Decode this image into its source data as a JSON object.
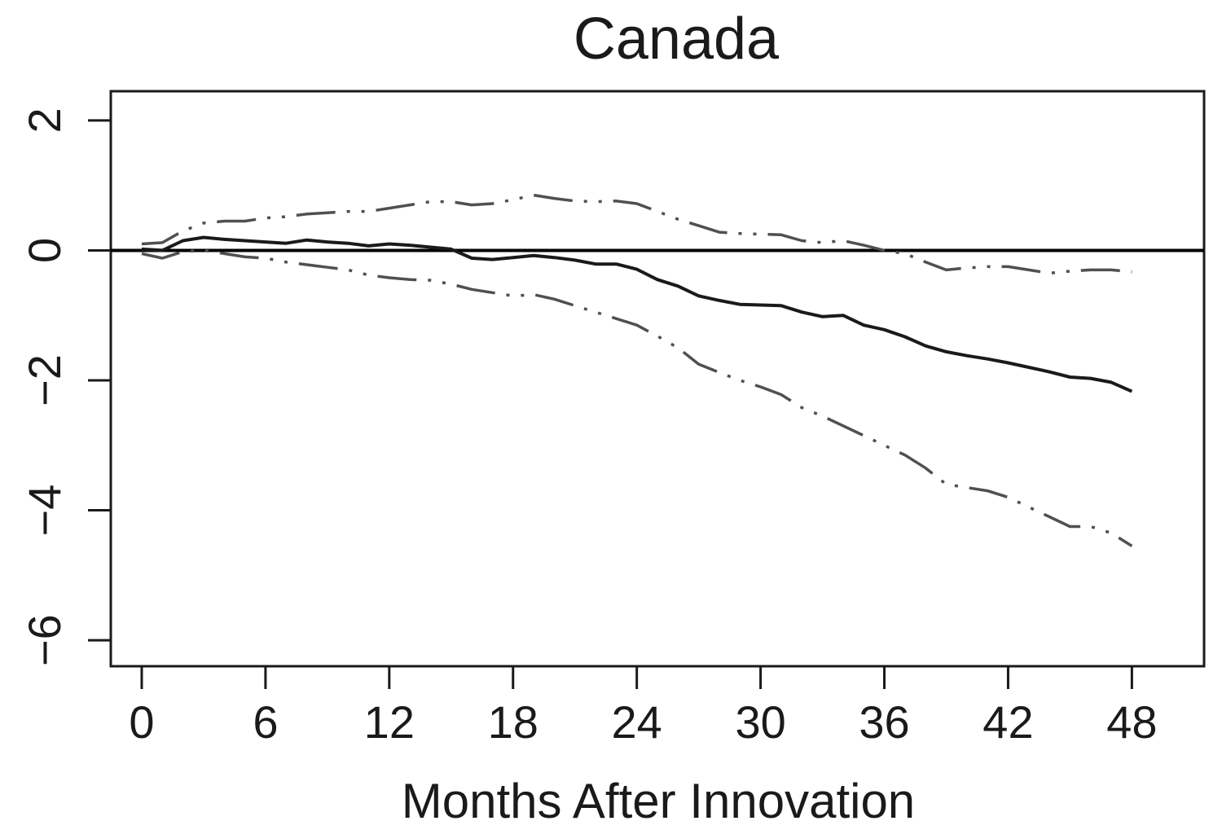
{
  "chart_data": {
    "type": "line",
    "title": "Canada",
    "xlabel": "Months After Innovation",
    "ylabel": "",
    "xlim": [
      -1.5,
      51.5
    ],
    "ylim": [
      -6.4,
      2.45
    ],
    "xticks": [
      0,
      6,
      12,
      18,
      24,
      30,
      36,
      42,
      48
    ],
    "yticks": [
      -6,
      -4,
      -2,
      0,
      2
    ],
    "ytick_labels": [
      "−6",
      "−4",
      "−2",
      "0",
      "2"
    ],
    "grid": false,
    "reference_line": 0,
    "x": [
      0,
      1,
      2,
      3,
      4,
      5,
      6,
      7,
      8,
      9,
      10,
      11,
      12,
      13,
      14,
      15,
      16,
      17,
      18,
      19,
      20,
      21,
      22,
      23,
      24,
      25,
      26,
      27,
      28,
      29,
      30,
      31,
      32,
      33,
      34,
      35,
      36,
      37,
      38,
      39,
      40,
      41,
      42,
      43,
      44,
      45,
      46,
      47,
      48
    ],
    "series": [
      {
        "role": "estimate",
        "style": "solid",
        "color": "#1a1a1a",
        "values": [
          0.02,
          0.0,
          0.15,
          0.2,
          0.17,
          0.15,
          0.13,
          0.11,
          0.16,
          0.13,
          0.11,
          0.07,
          0.1,
          0.08,
          0.05,
          0.02,
          -0.12,
          -0.14,
          -0.11,
          -0.08,
          -0.11,
          -0.15,
          -0.21,
          -0.21,
          -0.29,
          -0.45,
          -0.55,
          -0.7,
          -0.77,
          -0.83,
          -0.84,
          -0.85,
          -0.95,
          -1.02,
          -1.0,
          -1.15,
          -1.22,
          -1.33,
          -1.47,
          -1.56,
          -1.62,
          -1.67,
          -1.73,
          -1.8,
          -1.87,
          -1.95,
          -1.97,
          -2.03,
          -2.17
        ]
      },
      {
        "role": "upper band",
        "style": "dash-dot",
        "color": "#505050",
        "values": [
          0.1,
          0.12,
          0.3,
          0.42,
          0.45,
          0.45,
          0.5,
          0.52,
          0.56,
          0.58,
          0.6,
          0.6,
          0.65,
          0.7,
          0.75,
          0.75,
          0.7,
          0.72,
          0.78,
          0.85,
          0.8,
          0.76,
          0.75,
          0.76,
          0.72,
          0.6,
          0.48,
          0.38,
          0.28,
          0.26,
          0.25,
          0.24,
          0.15,
          0.12,
          0.15,
          0.08,
          0.0,
          -0.05,
          -0.18,
          -0.3,
          -0.27,
          -0.25,
          -0.25,
          -0.3,
          -0.35,
          -0.32,
          -0.3,
          -0.3,
          -0.33
        ]
      },
      {
        "role": "lower band",
        "style": "dash-dot",
        "color": "#505050",
        "values": [
          -0.05,
          -0.12,
          -0.02,
          0.0,
          -0.05,
          -0.1,
          -0.12,
          -0.18,
          -0.22,
          -0.26,
          -0.3,
          -0.38,
          -0.42,
          -0.45,
          -0.46,
          -0.52,
          -0.6,
          -0.65,
          -0.7,
          -0.68,
          -0.75,
          -0.85,
          -0.95,
          -1.05,
          -1.15,
          -1.32,
          -1.5,
          -1.75,
          -1.88,
          -2.0,
          -2.1,
          -2.22,
          -2.42,
          -2.55,
          -2.7,
          -2.85,
          -3.0,
          -3.15,
          -3.35,
          -3.6,
          -3.65,
          -3.7,
          -3.8,
          -3.95,
          -4.1,
          -4.25,
          -4.25,
          -4.35,
          -4.55
        ]
      }
    ]
  }
}
